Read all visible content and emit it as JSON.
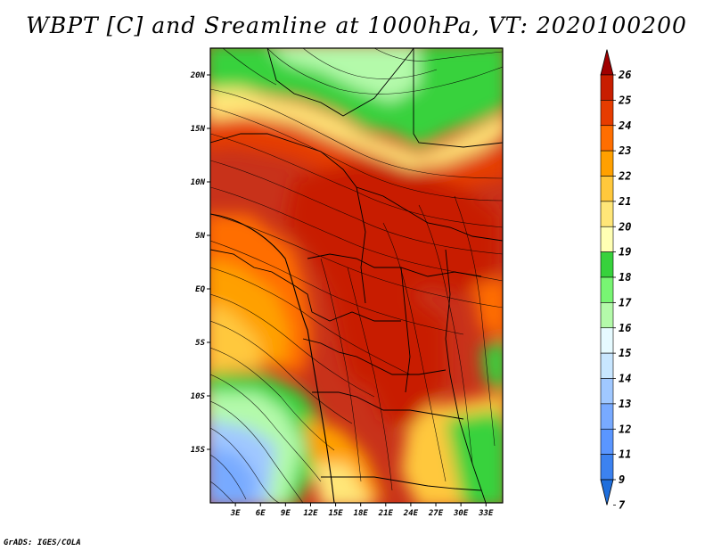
{
  "title": "WBPT [C] and Sreamline at 1000hPa, VT: 2020100200",
  "credit": "GrADS: IGES/COLA",
  "map": {
    "lon_range": [
      0,
      35
    ],
    "lat_range": [
      -20,
      22.5
    ],
    "y_ticks": [
      {
        "value": 20,
        "label": "20N"
      },
      {
        "value": 15,
        "label": "15N"
      },
      {
        "value": 10,
        "label": "10N"
      },
      {
        "value": 5,
        "label": "5N"
      },
      {
        "value": 0,
        "label": "EQ"
      },
      {
        "value": -5,
        "label": "5S"
      },
      {
        "value": -10,
        "label": "10S"
      },
      {
        "value": -15,
        "label": "15S"
      }
    ],
    "x_ticks": [
      {
        "value": 3,
        "label": "3E"
      },
      {
        "value": 6,
        "label": "6E"
      },
      {
        "value": 9,
        "label": "9E"
      },
      {
        "value": 12,
        "label": "12E"
      },
      {
        "value": 15,
        "label": "15E"
      },
      {
        "value": 18,
        "label": "18E"
      },
      {
        "value": 21,
        "label": "21E"
      },
      {
        "value": 24,
        "label": "24E"
      },
      {
        "value": 27,
        "label": "27E"
      },
      {
        "value": 30,
        "label": "30E"
      },
      {
        "value": 33,
        "label": "33E"
      }
    ]
  },
  "colorbar": {
    "levels": [
      "7",
      "9",
      "11",
      "12",
      "13",
      "14",
      "15",
      "16",
      "17",
      "18",
      "19",
      "20",
      "21",
      "22",
      "23",
      "24",
      "25",
      "26"
    ],
    "colors": [
      "#1e6edc",
      "#3c82f0",
      "#5a96ff",
      "#78aaff",
      "#a0c8ff",
      "#c8e6ff",
      "#e6faff",
      "#b4faaa",
      "#78f573",
      "#37d23c",
      "#ffffb4",
      "#ffe678",
      "#ffc83c",
      "#ffa000",
      "#ff6e00",
      "#e63c00",
      "#c81e00",
      "#a00000"
    ]
  }
}
